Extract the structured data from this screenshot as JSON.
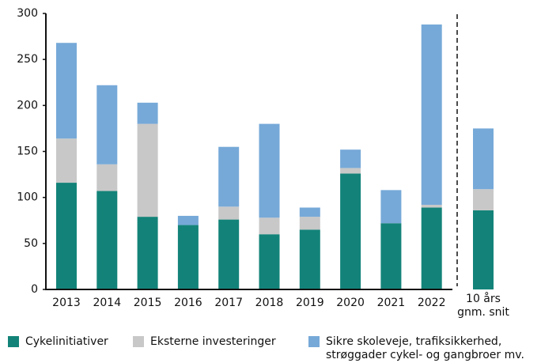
{
  "chart_data": {
    "type": "stacked_bar",
    "categories": [
      "2013",
      "2014",
      "2015",
      "2016",
      "2017",
      "2018",
      "2019",
      "2020",
      "2021",
      "2022",
      "10 års gnm. snit"
    ],
    "series": [
      {
        "name": "Cykelinitiativer",
        "color": "#138379",
        "values": [
          116,
          107,
          79,
          70,
          76,
          60,
          65,
          126,
          72,
          89,
          86
        ]
      },
      {
        "name": "Eksterne investeringer",
        "color": "#c8c8c8",
        "values": [
          48,
          29,
          101,
          0,
          14,
          18,
          14,
          6,
          0,
          3,
          23
        ]
      },
      {
        "name": "Sikre skoleveje, trafiksikkerhed, strøggader cykel- og gangbroer mv.",
        "color": "#76a9d8",
        "values": [
          104,
          86,
          23,
          10,
          65,
          102,
          10,
          20,
          36,
          196,
          66
        ]
      }
    ],
    "ylim": [
      0,
      300
    ],
    "yticks": [
      0,
      50,
      100,
      150,
      200,
      250,
      300
    ],
    "grid": false
  }
}
